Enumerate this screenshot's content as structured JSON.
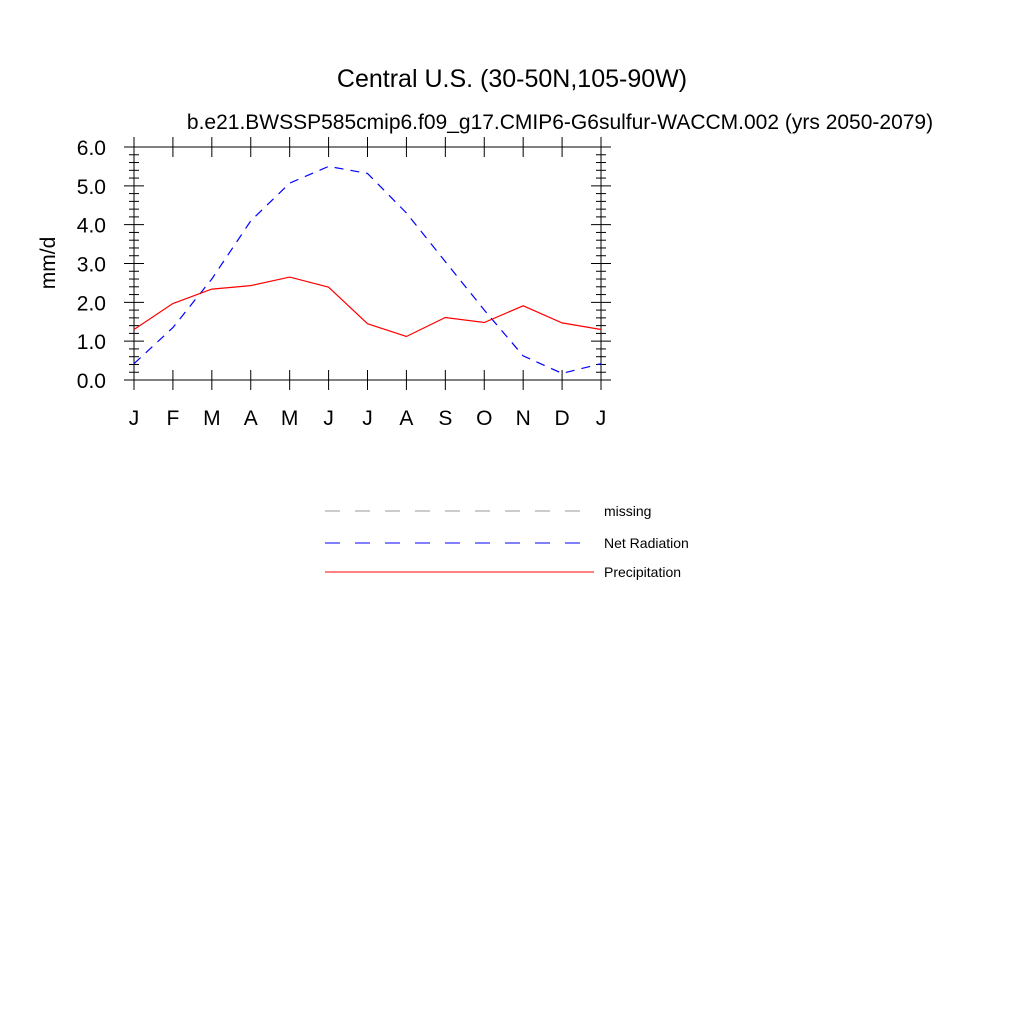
{
  "chart_data": {
    "type": "line",
    "title": "Central U.S. (30-50N,105-90W)",
    "subtitle": "b.e21.BWSSP585cmip6.f09_g17.CMIP6-G6sulfur-WACCM.002 (yrs 2050-2079)",
    "ylabel": "mm/d",
    "xlabel": "",
    "ylim": [
      0,
      6
    ],
    "yticks": [
      "0.0",
      "1.0",
      "2.0",
      "3.0",
      "4.0",
      "5.0",
      "6.0"
    ],
    "categories": [
      "J",
      "F",
      "M",
      "A",
      "M",
      "J",
      "J",
      "A",
      "S",
      "O",
      "N",
      "D",
      "J"
    ],
    "series": [
      {
        "name": "Net Radiation",
        "color": "#0000ff",
        "dash": "dashed",
        "values": [
          0.42,
          1.35,
          2.6,
          4.1,
          5.07,
          5.5,
          5.32,
          4.3,
          3.05,
          1.8,
          0.62,
          0.17,
          0.42
        ]
      },
      {
        "name": "Precipitation",
        "color": "#ff0000",
        "dash": "solid",
        "values": [
          1.3,
          1.97,
          2.34,
          2.43,
          2.65,
          2.39,
          1.45,
          1.12,
          1.61,
          1.48,
          1.91,
          1.47,
          1.3
        ]
      }
    ],
    "legend": [
      {
        "label": "missing",
        "color": "#999999",
        "dash": "dashed"
      },
      {
        "label": "Net Radiation",
        "color": "#0000ff",
        "dash": "dashed"
      },
      {
        "label": "Precipitation",
        "color": "#ff0000",
        "dash": "solid"
      }
    ],
    "legend_position": "below",
    "grid": false
  }
}
